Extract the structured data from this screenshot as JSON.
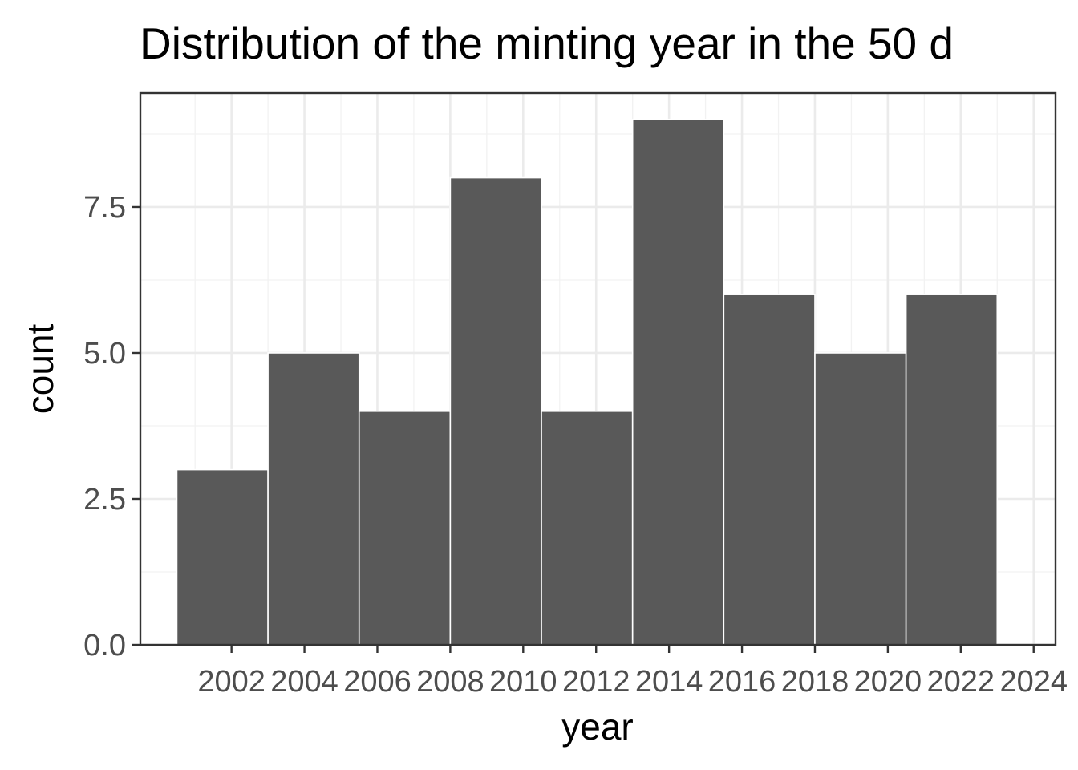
{
  "chart_data": {
    "type": "bar",
    "title": "Distribution of the minting year in the 50 d",
    "xlabel": "year",
    "ylabel": "count",
    "bar_width_years": 2.5,
    "bars": [
      {
        "x_start": 2000.5,
        "x_end": 2003.0,
        "count": 3
      },
      {
        "x_start": 2003.0,
        "x_end": 2005.5,
        "count": 5
      },
      {
        "x_start": 2005.5,
        "x_end": 2008.0,
        "count": 4
      },
      {
        "x_start": 2008.0,
        "x_end": 2010.5,
        "count": 8
      },
      {
        "x_start": 2010.5,
        "x_end": 2013.0,
        "count": 4
      },
      {
        "x_start": 2013.0,
        "x_end": 2015.5,
        "count": 9
      },
      {
        "x_start": 2015.5,
        "x_end": 2018.0,
        "count": 6
      },
      {
        "x_start": 2018.0,
        "x_end": 2020.5,
        "count": 5
      },
      {
        "x_start": 2020.5,
        "x_end": 2023.0,
        "count": 6
      }
    ],
    "xlim": [
      1999.5,
      2024.6
    ],
    "ylim": [
      0,
      9.45
    ],
    "x_ticks": [
      "2002",
      "2004",
      "2006",
      "2008",
      "2010",
      "2012",
      "2014",
      "2016",
      "2018",
      "2020",
      "2022",
      "2024"
    ],
    "y_ticks": [
      "0.0",
      "2.5",
      "5.0",
      "7.5"
    ],
    "bar_color": "#595959",
    "bar_outline_color": "#ffffff",
    "grid": true,
    "legend": "none"
  }
}
